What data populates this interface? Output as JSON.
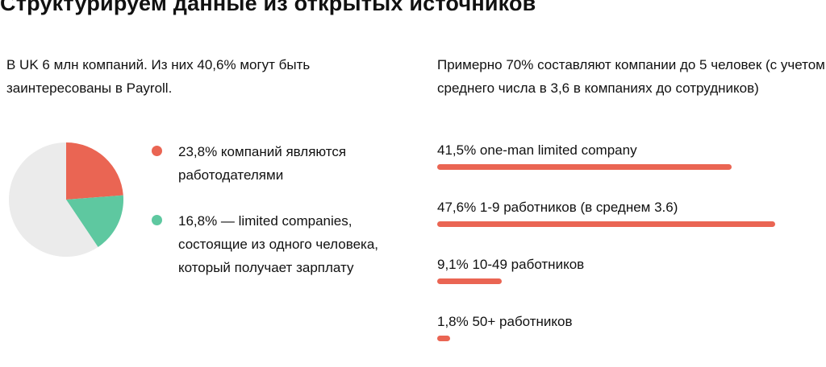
{
  "title": "Структурируем данные из открытых источников",
  "intro": "В UK 6 млн компаний. Из них 40,6% могут быть заинтересованы в Payroll.",
  "legend": [
    {
      "text": "23,8% компаний являются работодателями",
      "color": "#ea6553"
    },
    {
      "text": "16,8% — limited companies, состоящие из одного человека, который получает зарплату",
      "color": "#5ec8a0"
    }
  ],
  "right_intro": "Примерно 70% составляют компании до 5 человек (с учетом среднего числа в 3,6 в компаниях до сотрудников)",
  "colors": {
    "accent_red": "#ea6553",
    "accent_green": "#5ec8a0",
    "pie_rest": "#ebebeb"
  },
  "chart_data": [
    {
      "type": "pie",
      "slices": [
        {
          "label": "23,8% компаний являются работодателями",
          "value": 23.8,
          "color": "#ea6553"
        },
        {
          "label": "16,8% — limited companies",
          "value": 16.8,
          "color": "#5ec8a0"
        },
        {
          "label": "",
          "value": 59.4,
          "color": "#ebebeb"
        }
      ]
    },
    {
      "type": "bar",
      "orientation": "horizontal",
      "categories": [
        "41,5% one-man limited company",
        "47,6% 1-9 работников (в среднем 3.6)",
        "9,1% 10-49 работников",
        "1,8% 50+ работников"
      ],
      "values": [
        41.5,
        47.6,
        9.1,
        1.8
      ],
      "color": "#ea6553"
    }
  ]
}
